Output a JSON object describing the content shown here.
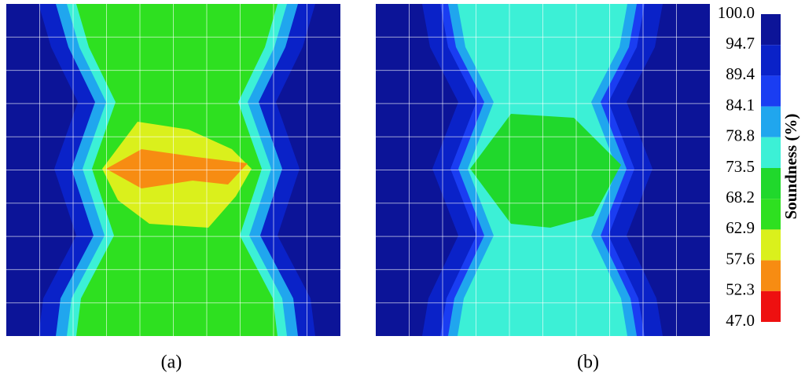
{
  "panels": [
    {
      "label": "(a)"
    },
    {
      "label": "(b)"
    }
  ],
  "colorbar": {
    "label": "Soundness (%)",
    "ticks": [
      {
        "value": 100,
        "label": "100.0"
      },
      94.7,
      89.4,
      84.1,
      78.8,
      73.5,
      68.2,
      62.9,
      57.6,
      52.3,
      {
        "value": 47,
        "label": "47.0"
      }
    ],
    "colors": [
      "#0c1498",
      "#0a22c8",
      "#1a3df2",
      "#20a6ee",
      "#3cf0d6",
      "#20d82c",
      "#2ee020",
      "#daf01c",
      "#f78c12",
      "#ee1010"
    ]
  }
}
